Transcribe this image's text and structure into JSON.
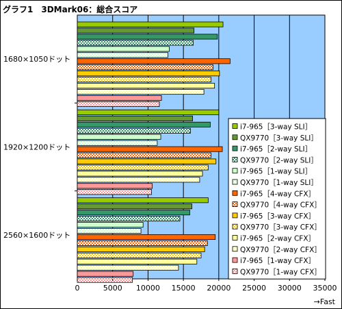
{
  "chart_data": {
    "type": "bar",
    "orientation": "horizontal",
    "title": "グラフ1　3DMark06：総合スコア",
    "x_unit_label": "→Fast",
    "xlim": [
      0,
      35000
    ],
    "x_ticks": [
      0,
      5000,
      10000,
      15000,
      20000,
      25000,
      30000,
      35000
    ],
    "grid": true,
    "legend_position": "right",
    "categories": [
      "1680×1050ドット",
      "1920×1200ドット",
      "2560×1600ドット"
    ],
    "series": [
      {
        "name": "i7-965［3-way SLI］",
        "color": "#99cc00",
        "pattern": "solid",
        "values": [
          20600,
          20000,
          18500
        ]
      },
      {
        "name": "QX9770［3-way SLI］",
        "color": "#669933",
        "pattern": "solid",
        "values": [
          16500,
          16300,
          16200
        ]
      },
      {
        "name": "i7-965［2-way SLI］",
        "color": "#339966",
        "pattern": "solid",
        "values": [
          19800,
          18800,
          15900
        ]
      },
      {
        "name": "QX9770［2-way SLI］",
        "color": "#339966",
        "pattern": "hatched",
        "values": [
          16400,
          16000,
          14500
        ]
      },
      {
        "name": "i7-965［1-way SLI］",
        "color": "#ccffcc",
        "pattern": "solid",
        "values": [
          13000,
          11800,
          9300
        ]
      },
      {
        "name": "QX9770［1-way SLI］",
        "color": "#ccffcc",
        "pattern": "hatched",
        "values": [
          12800,
          11300,
          9000
        ]
      },
      {
        "name": "i7-965［4-way CFX］",
        "color": "#ff6600",
        "pattern": "solid",
        "values": [
          21600,
          20500,
          19500
        ]
      },
      {
        "name": "QX9770［4-way CFX］",
        "color": "#ff6600",
        "pattern": "hatched",
        "values": [
          19200,
          18900,
          18400
        ]
      },
      {
        "name": "i7-965［3-way CFX］",
        "color": "#ffcc00",
        "pattern": "solid",
        "values": [
          20100,
          19600,
          18000
        ]
      },
      {
        "name": "QX9770［3-way CFX］",
        "color": "#ffcc00",
        "pattern": "hatched",
        "values": [
          18900,
          18500,
          17500
        ]
      },
      {
        "name": "i7-965［2-way CFX］",
        "color": "#ffff99",
        "pattern": "solid",
        "values": [
          19400,
          17700,
          16900
        ]
      },
      {
        "name": "QX9770［2-way CFX］",
        "color": "#ffff99",
        "pattern": "hatched",
        "values": [
          17900,
          17300,
          14300
        ]
      },
      {
        "name": "i7-965［1-way CFX］",
        "color": "#ff9999",
        "pattern": "solid",
        "values": [
          11900,
          10600,
          7900
        ]
      },
      {
        "name": "QX9770［1-way CFX］",
        "color": "#ff9999",
        "pattern": "hatched",
        "values": [
          11600,
          10500,
          7800
        ]
      }
    ],
    "colors": {
      "plot_background": "#99ccff",
      "frame": "#000000"
    }
  }
}
